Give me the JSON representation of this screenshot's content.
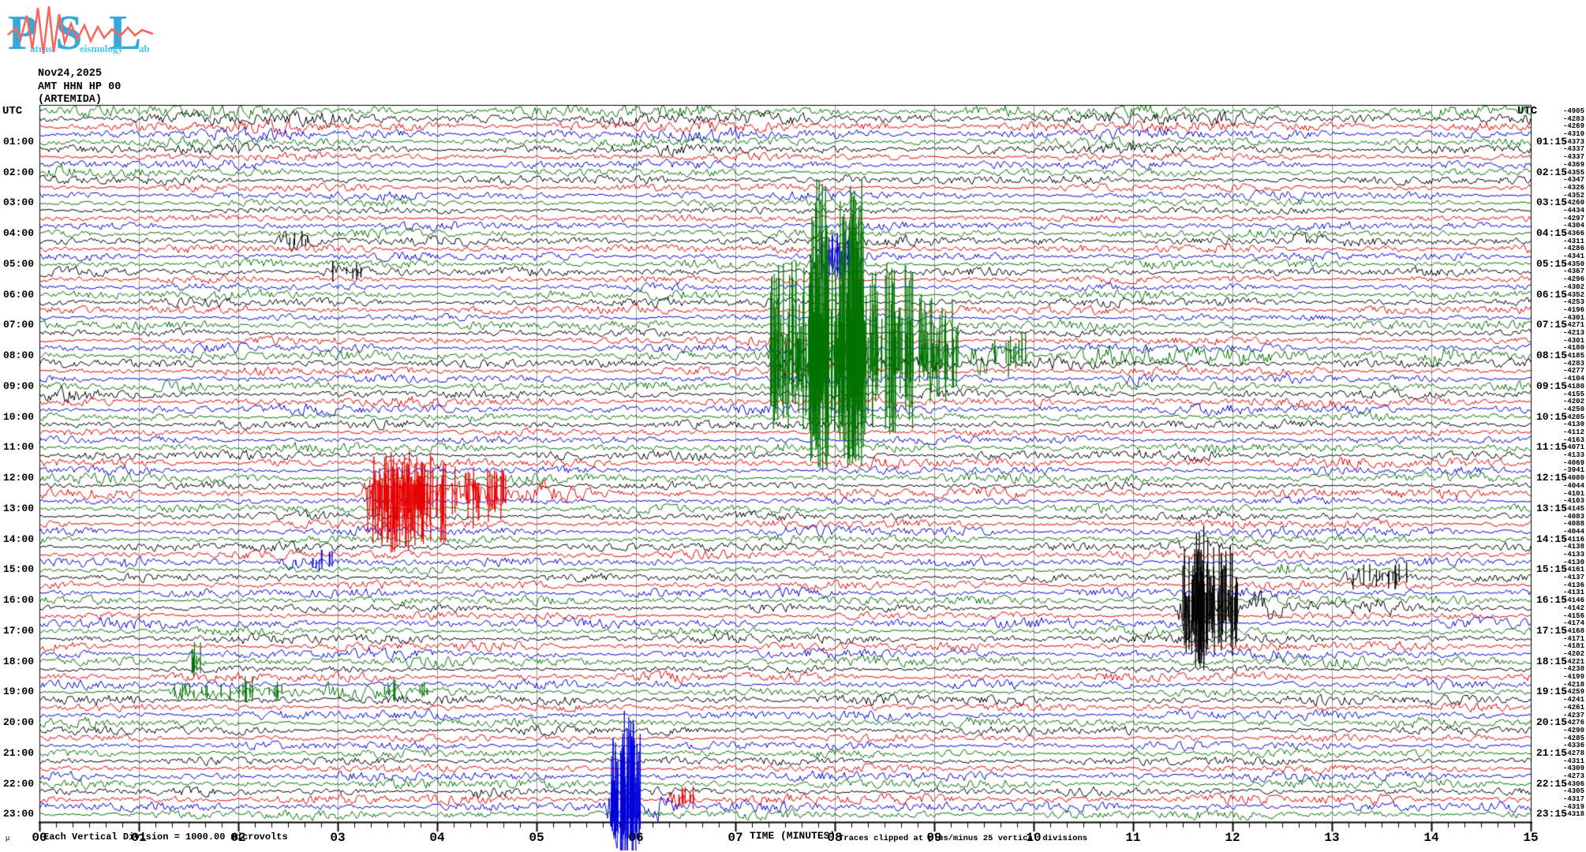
{
  "logo": {
    "letters": [
      "P",
      "S",
      "L"
    ],
    "words": [
      "atras",
      "eismology",
      "ab"
    ],
    "letter_color": "#38a8da",
    "word_color": "#3ec9e9",
    "squiggle_color": "#f4685f"
  },
  "header": {
    "date": "Nov24,2025",
    "station": "AMT HHN HP 00",
    "location": "(ARTEMIDA)"
  },
  "footer": {
    "scale_glyph": "μ",
    "scale_text": "Each Vertical Division = 1000.00 microvolts",
    "x_title": "TIME (MINUTES)",
    "clip_note": "Traces clipped at plus/minus 25 vertical divisions"
  },
  "chart_data": {
    "type": "seismogram-helicorder",
    "title": "AMT HHN HP 00 (ARTEMIDA) Nov24,2025",
    "xlabel": "TIME (MINUTES)",
    "x_range_minutes": [
      0,
      15
    ],
    "minutes_per_line": 15,
    "num_lines": 93,
    "axis": {
      "utc": "UTC"
    },
    "grid": true,
    "x_ticks": [
      "00",
      "01",
      "02",
      "03",
      "04",
      "05",
      "06",
      "07",
      "08",
      "09",
      "10",
      "11",
      "12",
      "13",
      "14",
      "15"
    ],
    "left_labels": [
      "01:00",
      "02:00",
      "03:00",
      "04:00",
      "05:00",
      "06:00",
      "07:00",
      "08:00",
      "09:00",
      "10:00",
      "11:00",
      "12:00",
      "13:00",
      "14:00",
      "15:00",
      "16:00",
      "17:00",
      "18:00",
      "19:00",
      "20:00",
      "21:00",
      "22:00",
      "23:00"
    ],
    "right_labels": [
      "01:15",
      "02:15",
      "03:15",
      "04:15",
      "05:15",
      "06:15",
      "07:15",
      "08:15",
      "09:15",
      "10:15",
      "11:15",
      "12:15",
      "13:15",
      "14:15",
      "15:15",
      "16:15",
      "17:15",
      "18:15",
      "19:15",
      "20:15",
      "21:15",
      "22:15",
      "23:15"
    ],
    "right_values": [
      "-4905",
      "-4283",
      "-4269",
      "-4310",
      "-4373",
      "-4337",
      "-4337",
      "-4369",
      "-4355",
      "-4347",
      "-4326",
      "-4352",
      "-4260",
      "-4434",
      "-4297",
      "-4304",
      "-4366",
      "-4311",
      "-4286",
      "-4341",
      "-4350",
      "-4367",
      "-4296",
      "-4302",
      "-4352",
      "-4253",
      "-4196",
      "-4301",
      "-4271",
      "-4213",
      "-4301",
      "-4180",
      "-4185",
      "-4283",
      "-4277",
      "-4104",
      "-4180",
      "-4155",
      "-4202",
      "-4250",
      "-4205",
      "-4130",
      "-4112",
      "-4163",
      "-4071",
      "-4133",
      "-4069",
      "-3941",
      "-4080",
      "-4044",
      "-4101",
      "-4103",
      "-4145",
      "-4083",
      "-4088",
      "-4044",
      "-4116",
      "-4138",
      "-4133",
      "-4130",
      "-4161",
      "-4137",
      "-4136",
      "-4131",
      "-4146",
      "-4142",
      "-4156",
      "-4174",
      "-4168",
      "-4171",
      "-4181",
      "-4202",
      "-4221",
      "-4238",
      "-4199",
      "-4218",
      "-4259",
      "-4241",
      "-4261",
      "-4237",
      "-4276",
      "-4290",
      "-4285",
      "-4336",
      "-4278",
      "-4311",
      "-4309",
      "-4273",
      "-4306",
      "-4305",
      "-4317",
      "-4319",
      "-4318"
    ],
    "trace_color_cycle": [
      "#007300",
      "#000000",
      "#e80000",
      "#0000dd"
    ],
    "grid_color": "#999999",
    "events": [
      {
        "row": 8,
        "utc": "02:00",
        "color": "green",
        "segments": [
          [
            0.02,
            0.78,
            9
          ],
          [
            0.78,
            1.35,
            3.5
          ]
        ],
        "spikes": []
      },
      {
        "row": 9,
        "utc": "02:15",
        "color": "black",
        "segments": [
          [
            7.95,
            8.65,
            4.5
          ]
        ],
        "spikes": []
      },
      {
        "row": 17,
        "utc": "04:15",
        "color": "black",
        "segments": [
          [
            2.36,
            2.84,
            8
          ],
          [
            12.55,
            13.02,
            6.5
          ]
        ],
        "spikes": [
          [
            2.5,
            2.7,
            6,
            14,
            12
          ]
        ]
      },
      {
        "row": 19,
        "utc": "04:45",
        "color": "blue",
        "segments": [
          [
            7.7,
            8.35,
            16
          ]
        ],
        "spikes": [
          [
            7.85,
            8.2,
            26,
            34,
            30
          ]
        ]
      },
      {
        "row": 21,
        "utc": "05:15",
        "color": "black",
        "segments": [
          [
            2.8,
            3.4,
            9
          ]
        ],
        "spikes": [
          [
            2.95,
            3.25,
            8,
            16,
            14
          ]
        ]
      },
      {
        "row": 26,
        "utc": "06:30",
        "color": "red",
        "segments": [
          [
            2.0,
            2.14,
            7
          ]
        ],
        "spikes": []
      },
      {
        "row": 30,
        "utc": "07:30",
        "color": "red",
        "segments": [
          [
            7.3,
            8.6,
            4
          ]
        ],
        "spikes": []
      },
      {
        "row": 31,
        "utc": "07:45",
        "color": "blue",
        "segments": [
          [
            7.3,
            8.7,
            4
          ]
        ],
        "spikes": []
      },
      {
        "row": 32,
        "utc": "08:00",
        "color": "green",
        "desc": "large clipped earthquake with long coda",
        "segments": [
          [
            7.28,
            8.85,
            52
          ],
          [
            8.85,
            9.3,
            40
          ],
          [
            9.3,
            10.0,
            22
          ],
          [
            10.0,
            13.8,
            8
          ],
          [
            13.8,
            15.0,
            11
          ]
        ],
        "spikes": [
          [
            7.35,
            8.8,
            200,
            120,
            100
          ],
          [
            7.74,
            7.95,
            60,
            225,
            150
          ],
          [
            8.05,
            8.3,
            70,
            225,
            155
          ],
          [
            8.85,
            9.25,
            40,
            80,
            60
          ],
          [
            9.6,
            9.95,
            14,
            40,
            30
          ]
        ]
      },
      {
        "row": 33,
        "utc": "08:15",
        "color": "black",
        "segments": [
          [
            7.25,
            9.7,
            6
          ],
          [
            9.7,
            12.0,
            3
          ]
        ],
        "spikes": []
      },
      {
        "row": 34,
        "utc": "08:30",
        "color": "red",
        "segments": [
          [
            7.3,
            9.2,
            5.5
          ]
        ],
        "spikes": []
      },
      {
        "row": 35,
        "utc": "08:45",
        "color": "blue",
        "segments": [
          [
            7.35,
            9.0,
            4.5
          ],
          [
            10.85,
            11.75,
            5
          ]
        ],
        "spikes": []
      },
      {
        "row": 37,
        "utc": "09:15",
        "color": "black",
        "segments": [
          [
            0.0,
            1.25,
            6
          ]
        ],
        "spikes": []
      },
      {
        "row": 38,
        "utc": "09:30",
        "color": "red",
        "segments": [
          [
            9.95,
            10.5,
            4.5
          ]
        ],
        "spikes": []
      },
      {
        "row": 45,
        "utc": "11:15",
        "color": "black",
        "segments": [
          [
            11.5,
            12.1,
            5.5
          ]
        ],
        "spikes": []
      },
      {
        "row": 50,
        "utc": "12:30",
        "color": "red",
        "desc": "strong clipped local event",
        "segments": [
          [
            3.22,
            4.15,
            46
          ],
          [
            4.15,
            4.8,
            26
          ],
          [
            4.8,
            6.0,
            8
          ]
        ],
        "spikes": [
          [
            3.3,
            4.1,
            90,
            50,
            70
          ],
          [
            3.5,
            3.85,
            40,
            55,
            85
          ],
          [
            4.15,
            4.7,
            30,
            38,
            45
          ]
        ]
      },
      {
        "row": 59,
        "utc": "14:45",
        "color": "blue",
        "segments": [
          [
            0.8,
            1.15,
            8
          ],
          [
            2.38,
            3.08,
            10
          ]
        ],
        "spikes": [
          [
            2.5,
            2.95,
            10,
            16,
            14
          ]
        ]
      },
      {
        "row": 60,
        "utc": "15:00",
        "color": "green",
        "segments": [
          [
            12.38,
            12.8,
            8
          ]
        ],
        "spikes": []
      },
      {
        "row": 61,
        "utc": "15:15",
        "color": "black",
        "segments": [
          [
            13.05,
            14.0,
            12
          ]
        ],
        "spikes": [
          [
            13.2,
            13.8,
            16,
            20,
            16
          ]
        ]
      },
      {
        "row": 65,
        "utc": "16:15",
        "color": "black",
        "desc": "local event with long coda",
        "segments": [
          [
            11.42,
            12.1,
            40
          ],
          [
            12.1,
            13.0,
            14
          ],
          [
            13.0,
            14.7,
            7
          ]
        ],
        "spikes": [
          [
            11.5,
            12.05,
            70,
            80,
            62
          ],
          [
            11.62,
            11.78,
            25,
            105,
            80
          ]
        ]
      },
      {
        "row": 72,
        "utc": "18:00",
        "color": "green",
        "segments": [
          [
            1.48,
            1.72,
            12
          ]
        ],
        "spikes": [
          [
            1.53,
            1.63,
            6,
            26,
            20
          ]
        ]
      },
      {
        "row": 76,
        "utc": "19:00",
        "color": "green",
        "desc": "prolonged noise burst",
        "segments": [
          [
            1.18,
            2.6,
            9
          ],
          [
            2.6,
            4.4,
            8
          ],
          [
            4.4,
            4.9,
            4
          ]
        ],
        "spikes": [
          [
            2.0,
            2.15,
            8,
            30,
            22
          ],
          [
            3.42,
            3.58,
            6,
            18,
            14
          ],
          [
            3.82,
            3.98,
            5,
            16,
            12
          ],
          [
            1.3,
            2.5,
            20,
            14,
            12
          ]
        ]
      },
      {
        "row": 89,
        "utc": "22:15",
        "color": "black",
        "segments": [
          [
            4.28,
            4.95,
            5.5
          ]
        ],
        "spikes": []
      },
      {
        "row": 90,
        "utc": "22:30",
        "color": "red",
        "segments": [
          [
            6.28,
            6.7,
            11
          ]
        ],
        "spikes": [
          [
            6.35,
            6.6,
            10,
            18,
            16
          ]
        ]
      },
      {
        "row": 91,
        "utc": "22:45",
        "color": "blue",
        "desc": "sharp clipped local event extending below plot",
        "segments": [
          [
            5.7,
            6.1,
            48
          ],
          [
            6.1,
            6.6,
            12
          ],
          [
            6.6,
            9.0,
            4
          ]
        ],
        "spikes": [
          [
            5.75,
            6.06,
            60,
            100,
            60
          ],
          [
            5.85,
            5.98,
            20,
            128,
            70
          ]
        ]
      }
    ]
  }
}
